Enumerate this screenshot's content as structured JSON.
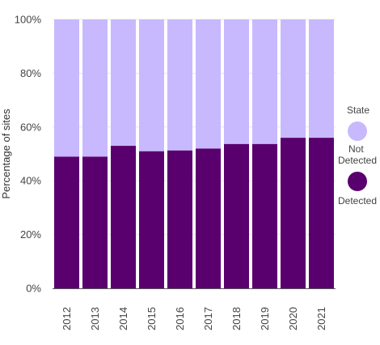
{
  "chart_data": {
    "type": "bar",
    "stacked": true,
    "ylabel": "Percentage of sites",
    "xlabel": "",
    "ylim": [
      0,
      100
    ],
    "yticks": [
      "0%",
      "20%",
      "40%",
      "60%",
      "80%",
      "100%"
    ],
    "grid": true,
    "categories": [
      "2012",
      "2013",
      "2014",
      "2015",
      "2016",
      "2017",
      "2018",
      "2019",
      "2020",
      "2021"
    ],
    "series": [
      {
        "name": "Detected",
        "color": "#5a006e",
        "values": [
          49,
          49,
          53,
          51,
          51.3,
          52,
          53.7,
          53.7,
          56,
          56
        ]
      },
      {
        "name": "Not Detected",
        "color": "#c8b9fe",
        "values": [
          51,
          51,
          47,
          49,
          48.7,
          48,
          46.3,
          46.3,
          44,
          44
        ]
      }
    ],
    "legend": {
      "title": "State",
      "position": "right",
      "items": [
        {
          "label": "Not Detected",
          "color": "#c8b9fe"
        },
        {
          "label": "Detected",
          "color": "#5a006e"
        }
      ]
    }
  }
}
